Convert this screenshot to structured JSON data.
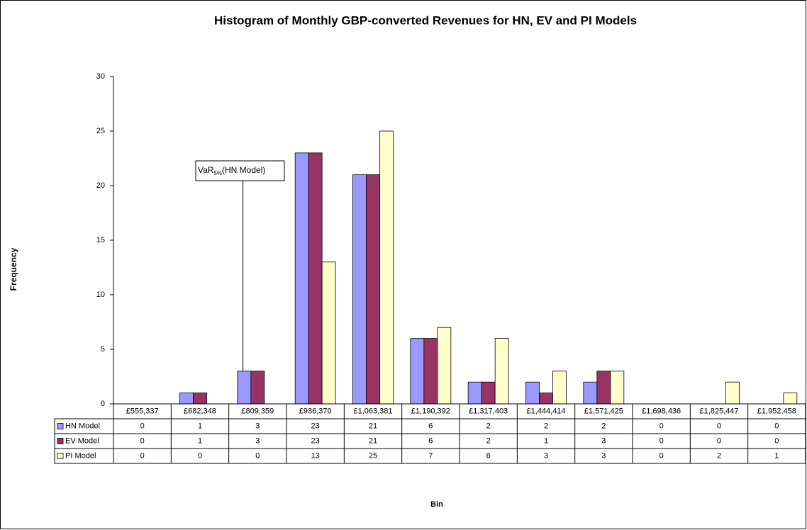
{
  "chart_data": {
    "type": "bar",
    "title": "Histogram of Monthly GBP-converted Revenues for HN, EV and PI Models",
    "x_label": "Bin",
    "y_label": "Frequency",
    "categories": [
      "£555,337",
      "£682,348",
      "£809,359",
      "£936,370",
      "£1,063,381",
      "£1,190,392",
      "£1,317,403",
      "£1,444,414",
      "£1,571,425",
      "£1,698,436",
      "£1,825,447",
      "£1,952,458"
    ],
    "series": [
      {
        "name": "HN Model",
        "color": "#9999ff",
        "values": [
          0,
          1,
          3,
          23,
          21,
          6,
          2,
          2,
          2,
          0,
          0,
          0
        ]
      },
      {
        "name": "EV Model",
        "color": "#993366",
        "values": [
          0,
          1,
          3,
          23,
          21,
          6,
          2,
          1,
          3,
          0,
          0,
          0
        ]
      },
      {
        "name": "PI Model",
        "color": "#ffffcc",
        "values": [
          0,
          0,
          0,
          13,
          25,
          7,
          6,
          3,
          3,
          0,
          2,
          1
        ]
      }
    ],
    "ylim": [
      0,
      30
    ],
    "yticks": [
      0,
      5,
      10,
      15,
      20,
      25,
      30
    ],
    "grid": false,
    "annotation": {
      "text": "VaR",
      "subscript": "5%",
      "suffix": "(HN Model)"
    }
  }
}
